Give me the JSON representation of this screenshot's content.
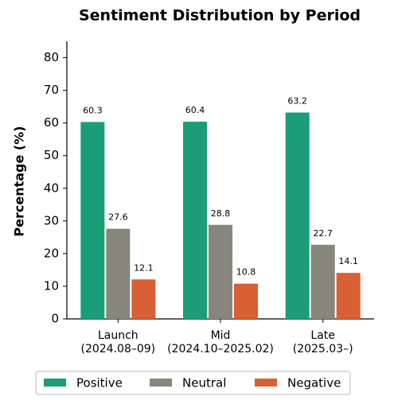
{
  "chart_data": {
    "type": "bar",
    "title": "Sentiment Distribution by Period",
    "y_label": "Percentage (%)",
    "categories": [
      [
        "Launch",
        "(2024.08–09)"
      ],
      [
        "Mid",
        "(2024.10–2025.02)"
      ],
      [
        "Late",
        "(2025.03–)"
      ]
    ],
    "series": [
      {
        "name": "Positive",
        "color": "#1b9e77",
        "values": [
          60.3,
          60.4,
          63.2
        ]
      },
      {
        "name": "Neutral",
        "color": "#86867d",
        "values": [
          27.6,
          28.8,
          22.7
        ]
      },
      {
        "name": "Negative",
        "color": "#d95f35",
        "values": [
          12.1,
          10.8,
          14.1
        ]
      }
    ],
    "ylim": [
      0,
      85
    ],
    "yticks": [
      0,
      10,
      20,
      30,
      40,
      50,
      60,
      70,
      80
    ],
    "legend": "bottom",
    "grid": false
  }
}
